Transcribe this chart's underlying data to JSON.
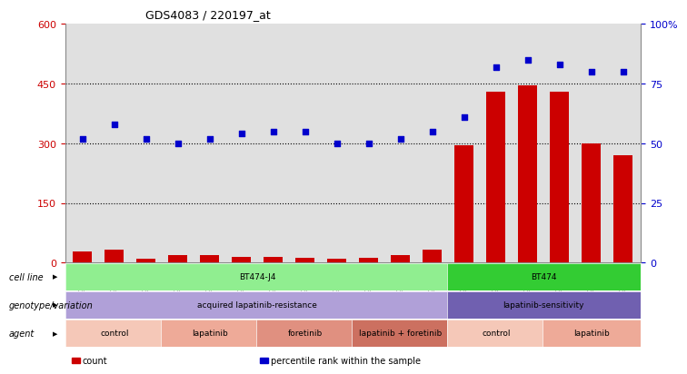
{
  "title": "GDS4083 / 220197_at",
  "samples": [
    "GSM799174",
    "GSM799175",
    "GSM799176",
    "GSM799180",
    "GSM799181",
    "GSM799182",
    "GSM799177",
    "GSM799178",
    "GSM799179",
    "GSM799183",
    "GSM799184",
    "GSM799185",
    "GSM799168",
    "GSM799169",
    "GSM799170",
    "GSM799171",
    "GSM799172",
    "GSM799173"
  ],
  "counts": [
    28,
    32,
    10,
    20,
    18,
    15,
    14,
    12,
    10,
    12,
    18,
    32,
    295,
    430,
    445,
    430,
    300,
    270
  ],
  "percentile": [
    52,
    58,
    52,
    50,
    52,
    54,
    55,
    55,
    50,
    50,
    52,
    55,
    61,
    82,
    85,
    83,
    80,
    80
  ],
  "left_ylim": [
    0,
    600
  ],
  "right_ylim": [
    0,
    100
  ],
  "left_yticks": [
    0,
    150,
    300,
    450,
    600
  ],
  "right_yticks": [
    0,
    25,
    50,
    75,
    100
  ],
  "right_yticklabels": [
    "0",
    "25",
    "50",
    "75",
    "100%"
  ],
  "bar_color": "#cc0000",
  "dot_color": "#0000cc",
  "background_color": "#ffffff",
  "xaxis_bg": "#d0d0d0",
  "cell_line_groups": [
    {
      "label": "BT474-J4",
      "start": 0,
      "end": 11,
      "color": "#90ee90"
    },
    {
      "label": "BT474",
      "start": 12,
      "end": 17,
      "color": "#33cc33"
    }
  ],
  "genotype_groups": [
    {
      "label": "acquired lapatinib-resistance",
      "start": 0,
      "end": 11,
      "color": "#b0a0d8"
    },
    {
      "label": "lapatinib-sensitivity",
      "start": 12,
      "end": 17,
      "color": "#7060b0"
    }
  ],
  "agent_groups": [
    {
      "label": "control",
      "start": 0,
      "end": 2,
      "color": "#f5c8b8"
    },
    {
      "label": "lapatinib",
      "start": 3,
      "end": 5,
      "color": "#eeaa98"
    },
    {
      "label": "foretinib",
      "start": 6,
      "end": 8,
      "color": "#e09080"
    },
    {
      "label": "lapatinib + foretinib",
      "start": 9,
      "end": 11,
      "color": "#cc7060"
    },
    {
      "label": "control",
      "start": 12,
      "end": 14,
      "color": "#f5c8b8"
    },
    {
      "label": "lapatinib",
      "start": 15,
      "end": 17,
      "color": "#eeaa98"
    }
  ],
  "row_labels": [
    "cell line",
    "genotype/variation",
    "agent"
  ],
  "legend_items": [
    {
      "color": "#cc0000",
      "label": "count"
    },
    {
      "color": "#0000cc",
      "label": "percentile rank within the sample"
    }
  ]
}
